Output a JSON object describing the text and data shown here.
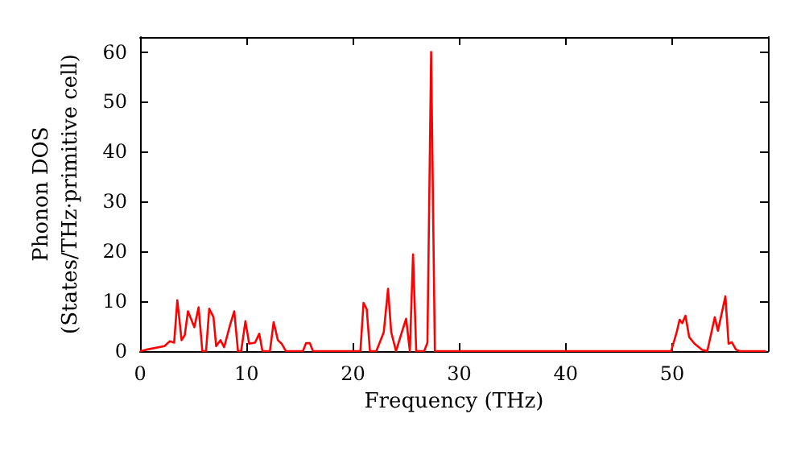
{
  "chart_data": {
    "type": "line",
    "xlabel": "Frequency (THz)",
    "ylabel": "Phonon DOS\n(States/THz·primitive cell)",
    "series": [
      {
        "color": "#ff0000",
        "x": [
          0,
          0.6,
          2.3,
          2.8,
          3.2,
          3.5,
          3.9,
          4.2,
          4.5,
          5.1,
          5.5,
          5.85,
          6.2,
          6.5,
          6.9,
          7.15,
          7.55,
          7.9,
          8.45,
          8.85,
          9.2,
          9.5,
          9.9,
          10.25,
          10.8,
          11.2,
          11.5,
          12.2,
          12.55,
          12.95,
          13.3,
          13.7,
          15.3,
          15.6,
          15.95,
          16.25,
          20.7,
          21.0,
          21.3,
          21.6,
          22.2,
          22.9,
          23.3,
          23.6,
          24.05,
          24.6,
          25.0,
          25.35,
          25.65,
          25.95,
          26.7,
          27.0,
          27.35,
          27.7,
          49.9,
          50.4,
          50.7,
          50.95,
          51.25,
          51.6,
          52.1,
          52.8,
          53.3,
          54.0,
          54.3,
          55.0,
          55.3,
          55.6,
          56.0,
          56.35,
          58.8
        ],
        "values": [
          0,
          0.3,
          1,
          2,
          1.7,
          10.2,
          2.2,
          3.2,
          8,
          4.8,
          8.8,
          0,
          0,
          8.5,
          6.8,
          1,
          2.2,
          0.8,
          5.2,
          8,
          0,
          0,
          6,
          1.5,
          1.7,
          3.5,
          0,
          0,
          5.8,
          2.2,
          1.5,
          0,
          0,
          1.6,
          1.6,
          0,
          0,
          9.7,
          8.4,
          0,
          0,
          3.8,
          12.5,
          3.8,
          0,
          3.8,
          6.5,
          0,
          19.4,
          0,
          0,
          1.7,
          60,
          0,
          0,
          3.6,
          6.3,
          5.6,
          7.1,
          2.8,
          1.5,
          0.3,
          0,
          6.8,
          4.1,
          11,
          1.5,
          1.8,
          0.3,
          0,
          0
        ]
      }
    ],
    "xlim": [
      0,
      59
    ],
    "xticks": [
      0,
      10,
      20,
      30,
      40,
      50
    ],
    "ylim": [
      0,
      63
    ],
    "yticks": [
      0,
      10,
      20,
      30,
      40,
      50,
      60
    ],
    "grid": false,
    "marker": "none",
    "line_style": "solid"
  }
}
